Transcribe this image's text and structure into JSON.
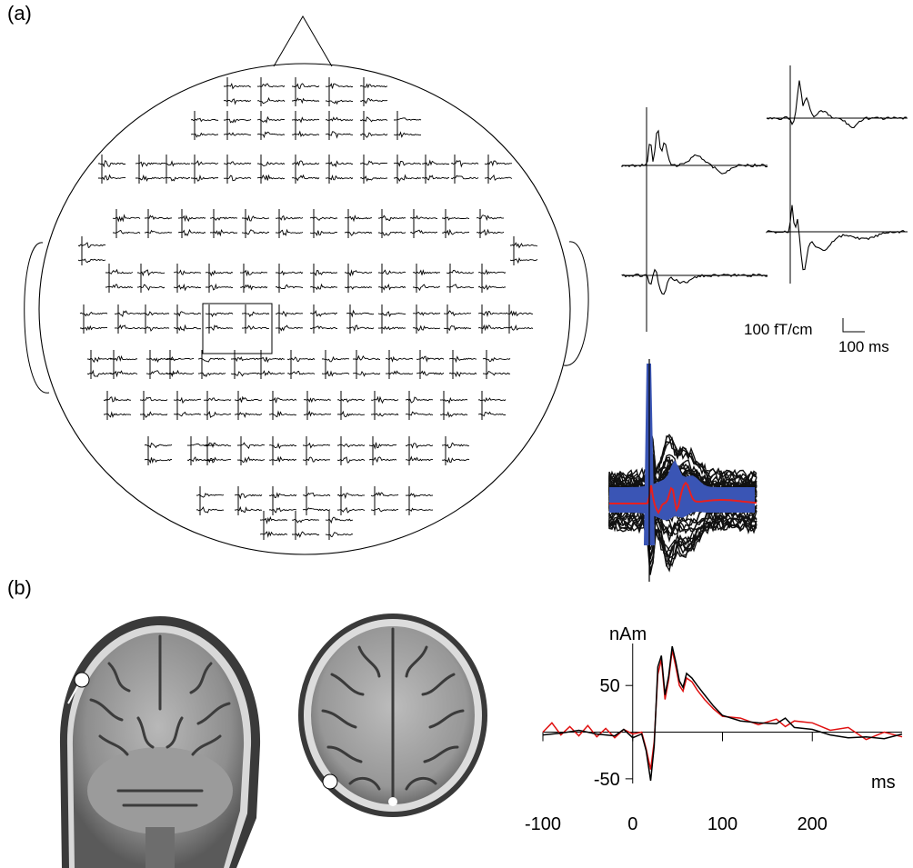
{
  "panel_a": {
    "label": "(a)",
    "scale_bar": {
      "amplitude": "100 fT/cm",
      "time": "100 ms"
    }
  },
  "panel_b": {
    "label": "(b)",
    "chart_data": {
      "type": "line",
      "ylabel": "nAm",
      "xlabel": "ms",
      "x_ticks": [
        -100,
        0,
        100,
        200
      ],
      "y_ticks": [
        50,
        -50
      ],
      "xlim": [
        -100,
        300
      ],
      "ylim": [
        -55,
        95
      ],
      "series_colors": {
        "measured": "#000000",
        "model": "#e01010"
      },
      "series": [
        {
          "x": [
            -100,
            -80,
            -60,
            -40,
            -20,
            -10,
            0,
            10,
            15,
            20,
            24,
            28,
            32,
            36,
            40,
            44,
            48,
            52,
            56,
            60,
            66,
            72,
            80,
            90,
            100,
            120,
            140,
            160,
            170,
            180,
            200,
            220,
            240,
            260,
            280,
            300
          ],
          "y": [
            -3,
            -1,
            2,
            -2,
            -4,
            3,
            -6,
            -2,
            -20,
            -52,
            -15,
            70,
            82,
            40,
            60,
            92,
            75,
            55,
            48,
            63,
            58,
            50,
            40,
            28,
            18,
            12,
            10,
            9,
            15,
            5,
            3,
            -3,
            -6,
            -5,
            -7,
            -2
          ]
        },
        {
          "x": [
            -100,
            -90,
            -80,
            -70,
            -60,
            -50,
            -40,
            -30,
            -20,
            -10,
            0,
            10,
            15,
            20,
            24,
            28,
            32,
            36,
            40,
            44,
            48,
            52,
            56,
            60,
            66,
            72,
            80,
            90,
            100,
            120,
            140,
            160,
            170,
            180,
            200,
            220,
            240,
            260,
            280,
            300
          ],
          "y": [
            0,
            10,
            -3,
            6,
            -4,
            7,
            -5,
            4,
            -6,
            3,
            -2,
            0,
            -18,
            -40,
            -10,
            62,
            78,
            35,
            56,
            88,
            70,
            50,
            44,
            58,
            54,
            45,
            35,
            25,
            17,
            15,
            8,
            14,
            6,
            12,
            10,
            2,
            5,
            -8,
            0,
            -5
          ]
        }
      ]
    }
  }
}
